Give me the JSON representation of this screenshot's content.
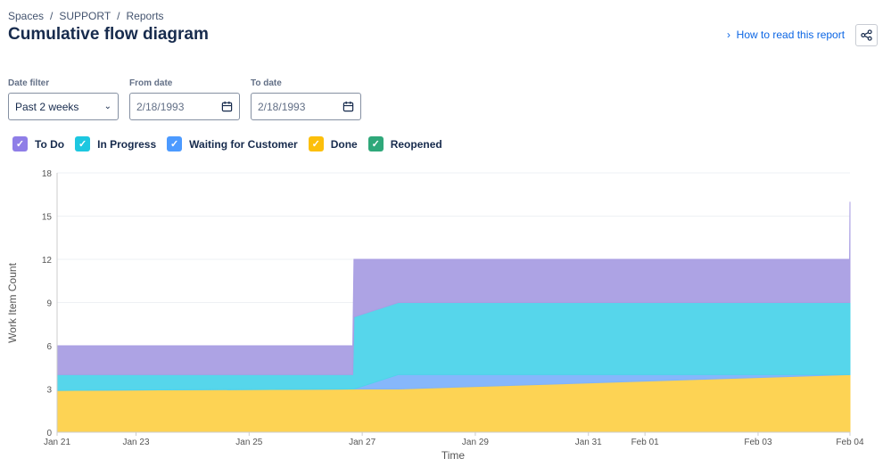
{
  "breadcrumb": [
    "Spaces",
    "SUPPORT",
    "Reports"
  ],
  "title": "Cumulative flow diagram",
  "how_to_link": "How to read this report",
  "filters": {
    "date_filter": {
      "label": "Date filter",
      "value": "Past 2 weeks"
    },
    "from_date": {
      "label": "From date",
      "value": "2/18/1993"
    },
    "to_date": {
      "label": "To date",
      "value": "2/18/1993"
    }
  },
  "chart_data": {
    "type": "area",
    "stacked": true,
    "xlabel": "Time",
    "ylabel": "Work Item Count",
    "ylim": [
      0,
      18
    ],
    "yticks": [
      0,
      3,
      6,
      9,
      12,
      15,
      18
    ],
    "xlim": [
      "Jan 21 14:30",
      "Feb 04 15:00"
    ],
    "xticks": [
      "Jan 21",
      "Jan 23",
      "Jan 25",
      "Jan 27",
      "Jan 29",
      "Jan 31",
      "Feb 01",
      "Feb 03",
      "Feb 04"
    ],
    "grid": true,
    "legend_position": "top-left",
    "x": [
      "Jan 21 14:30",
      "Jan 26 20:00",
      "Jan 26 20:30",
      "Jan 27 15:20",
      "Feb 04 14:50",
      "Feb 04 15:00"
    ],
    "series": [
      {
        "name": "Reopened",
        "color": "#2fa87a",
        "values": [
          0,
          0,
          0,
          0,
          0,
          0
        ]
      },
      {
        "name": "Done",
        "color": "#fdd14b",
        "values": [
          2.9,
          3,
          3,
          3,
          4,
          4
        ]
      },
      {
        "name": "Waiting for Customer",
        "color": "#7fb3fb",
        "values": [
          0,
          0,
          0,
          1,
          0,
          0
        ]
      },
      {
        "name": "In Progress",
        "color": "#4dd4ea",
        "values": [
          1.1,
          1,
          5,
          5,
          5,
          5
        ]
      },
      {
        "name": "To Do",
        "color": "#a99ee3",
        "values": [
          2,
          2,
          4,
          3,
          3,
          7
        ]
      }
    ],
    "legend": [
      {
        "name": "To Do",
        "color": "#8f7ee7"
      },
      {
        "name": "In Progress",
        "color": "#1dc7e0"
      },
      {
        "name": "Waiting for Customer",
        "color": "#4c9aff"
      },
      {
        "name": "Done",
        "color": "#fcbf0b"
      },
      {
        "name": "Reopened",
        "color": "#2fa87a"
      }
    ]
  }
}
